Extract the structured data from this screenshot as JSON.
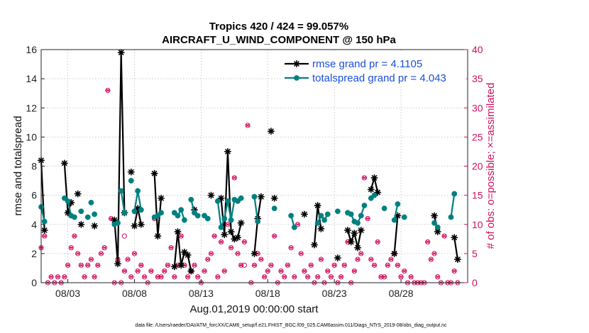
{
  "colors": {
    "rmse": "#000000",
    "spread": "#008080",
    "obs": "#d0105f",
    "legend_text": "#1a4fd8"
  },
  "chart_data": {
    "type": "line",
    "title": "Tropics 420 / 424 = 99.057%",
    "subtitle": "AIRCRAFT_U_WIND_COMPONENT @ 150 hPa",
    "xlabel": "Aug.01,2019 00:00:00 start",
    "ylabel": "rmse and totalspread",
    "ylabel_right": "# of obs: o=possible; ×=assimilated",
    "footer": "data file: /Users/raeder/DAI/ATM_forcXX/CAM6_setup/f.e21.FHIST_BGC.f09_025.CAM6assim.011/Diags_NTrS_2019-08/obs_diag_output.nc",
    "xlim": [
      1,
      33
    ],
    "ylim": [
      0,
      16
    ],
    "ylim_right": [
      0,
      40
    ],
    "x_ticks": [
      3,
      8,
      13,
      18,
      23,
      28
    ],
    "x_tick_labels": [
      "08/03",
      "08/08",
      "08/13",
      "08/18",
      "08/23",
      "08/28"
    ],
    "y_ticks": [
      0,
      2,
      4,
      6,
      8,
      10,
      12,
      14,
      16
    ],
    "y_tick_labels": [
      "0",
      "2",
      "4",
      "6",
      "8",
      "10",
      "12",
      "14",
      "16"
    ],
    "y_ticks_right": [
      0,
      5,
      10,
      15,
      20,
      25,
      30,
      35,
      40
    ],
    "y_tick_labels_right": [
      "0",
      "5",
      "10",
      "15",
      "20",
      "25",
      "30",
      "35",
      "40"
    ],
    "legend": [
      {
        "label": "rmse grand pr = 4.1105",
        "series": "rmse"
      },
      {
        "label": "totalspread grand pr = 4.043",
        "series": "spread"
      }
    ],
    "legend_position": "top-right",
    "series": [
      {
        "name": "rmse",
        "segments": [
          {
            "x": [
              1.0,
              1.25
            ],
            "y": [
              8.4,
              3.6
            ]
          },
          {
            "x": [
              2.75,
              3.0,
              3.25
            ],
            "y": [
              8.2,
              4.8,
              5.5
            ]
          },
          {
            "x": [
              6.5,
              6.75,
              7.0,
              7.25
            ],
            "y": [
              4.3,
              1.3,
              15.8,
              4.8
            ]
          },
          {
            "x": [
              8.0,
              8.25,
              8.5
            ],
            "y": [
              3.9,
              5.1,
              4.0
            ]
          },
          {
            "x": [
              9.5,
              9.75,
              10.0
            ],
            "y": [
              7.5,
              3.2,
              5.8
            ]
          },
          {
            "x": [
              11.0,
              11.25,
              11.5,
              11.75,
              12.0,
              12.25
            ],
            "y": [
              1.1,
              3.5,
              1.2,
              2.1,
              1.9,
              0.8
            ]
          },
          {
            "x": [
              14.5,
              14.75,
              15.0,
              15.25,
              15.5,
              15.75,
              16.0
            ],
            "y": [
              5.8,
              3.3,
              9.0,
              3.5,
              3.0,
              3.1,
              4.1
            ]
          },
          {
            "x": [
              17.0,
              17.25,
              17.5
            ],
            "y": [
              2.0,
              4.4,
              5.9
            ]
          },
          {
            "x": [
              21.5,
              21.75,
              22.0
            ],
            "y": [
              2.6,
              5.3,
              3.7
            ]
          },
          {
            "x": [
              24.0,
              24.25,
              24.5,
              24.75,
              25.0
            ],
            "y": [
              3.6,
              2.8,
              3.4,
              2.4,
              3.6
            ]
          },
          {
            "x": [
              25.75,
              26.0,
              26.25
            ],
            "y": [
              6.4,
              7.2,
              6.2
            ]
          },
          {
            "x": [
              27.5,
              27.75
            ],
            "y": [
              2.0,
              4.6
            ]
          },
          {
            "x": [
              30.5,
              30.75
            ],
            "y": [
              4.6,
              3.5
            ]
          },
          {
            "x": [
              32.0,
              32.25
            ],
            "y": [
              3.1,
              1.6
            ]
          }
        ],
        "isolated": [
          {
            "x": 3.75,
            "y": 6.1
          },
          {
            "x": 4.0,
            "y": 4.0
          },
          {
            "x": 5.0,
            "y": 3.9
          },
          {
            "x": 7.75,
            "y": 7.6
          },
          {
            "x": 12.5,
            "y": 5.0
          },
          {
            "x": 13.75,
            "y": 6.0
          },
          {
            "x": 18.25,
            "y": 10.4
          },
          {
            "x": 18.5,
            "y": 5.8
          },
          {
            "x": 20.75,
            "y": 4.7
          },
          {
            "x": 23.25,
            "y": 1.7
          }
        ]
      },
      {
        "name": "totalspread",
        "segments": [
          {
            "x": [
              1.0,
              1.25
            ],
            "y": [
              5.2,
              4.2
            ]
          },
          {
            "x": [
              2.75,
              3.0,
              3.25
            ],
            "y": [
              5.8,
              5.6,
              4.6
            ]
          },
          {
            "x": [
              6.5,
              6.75
            ],
            "y": [
              4.0,
              4.1
            ]
          },
          {
            "x": [
              7.0,
              7.25
            ],
            "y": [
              6.3,
              4.8
            ]
          },
          {
            "x": [
              8.0,
              8.25,
              8.5
            ],
            "y": [
              4.9,
              6.3,
              5.0
            ]
          },
          {
            "x": [
              9.5,
              9.75,
              10.0
            ],
            "y": [
              4.5,
              4.6,
              4.8
            ]
          },
          {
            "x": [
              11.0,
              11.25,
              11.5,
              11.75
            ],
            "y": [
              4.8,
              4.6,
              5.0,
              4.3
            ]
          },
          {
            "x": [
              12.25,
              12.5,
              12.75
            ],
            "y": [
              5.7,
              4.8,
              4.6
            ]
          },
          {
            "x": [
              14.25,
              14.5,
              14.75,
              15.0,
              15.25,
              15.5,
              15.75,
              16.0
            ],
            "y": [
              5.6,
              3.8,
              4.4,
              5.6,
              4.3,
              5.7,
              5.6,
              5.8
            ]
          },
          {
            "x": [
              17.0,
              17.25
            ],
            "y": [
              5.9,
              4.2
            ]
          },
          {
            "x": [
              19.75,
              20.0
            ],
            "y": [
              4.6,
              3.8
            ]
          },
          {
            "x": [
              21.75,
              22.0,
              22.25,
              22.5
            ],
            "y": [
              4.1,
              4.6,
              4.3,
              4.7
            ]
          },
          {
            "x": [
              24.0,
              24.25,
              24.5,
              24.75,
              25.0,
              25.25
            ],
            "y": [
              4.8,
              4.7,
              4.2,
              4.1,
              4.6,
              5.3
            ]
          },
          {
            "x": [
              25.75,
              26.0
            ],
            "y": [
              5.8,
              6.0
            ]
          },
          {
            "x": [
              27.5,
              27.75
            ],
            "y": [
              4.3,
              5.4
            ]
          },
          {
            "x": [
              30.5,
              30.75
            ],
            "y": [
              4.1,
              3.8
            ]
          },
          {
            "x": [
              31.75,
              32.0
            ],
            "y": [
              4.5,
              6.1
            ]
          }
        ],
        "isolated": [
          {
            "x": 3.5,
            "y": 4.5
          },
          {
            "x": 4.0,
            "y": 4.9
          },
          {
            "x": 4.5,
            "y": 4.5
          },
          {
            "x": 4.75,
            "y": 5.5
          },
          {
            "x": 5.0,
            "y": 4.7
          },
          {
            "x": 7.75,
            "y": 7.0
          },
          {
            "x": 13.25,
            "y": 4.6
          },
          {
            "x": 13.5,
            "y": 4.4
          },
          {
            "x": 18.5,
            "y": 5.1
          },
          {
            "x": 23.25,
            "y": 4.9
          },
          {
            "x": 26.75,
            "y": 5.1
          },
          {
            "x": 28.25,
            "y": 4.5
          }
        ]
      },
      {
        "name": "obs_assimilated",
        "axis": "right",
        "x": [
          1.0,
          1.25,
          1.5,
          1.75,
          2.0,
          2.25,
          2.5,
          2.75,
          3.0,
          3.25,
          3.5,
          3.75,
          4.0,
          4.25,
          4.5,
          4.75,
          5.0,
          5.25,
          5.5,
          5.75,
          6.0,
          6.25,
          6.5,
          6.75,
          7.0,
          7.25,
          7.5,
          7.75,
          8.0,
          8.25,
          8.5,
          8.75,
          9.0,
          9.25,
          9.5,
          9.75,
          10.0,
          10.25,
          10.5,
          10.75,
          11.0,
          11.25,
          11.5,
          11.75,
          12.0,
          12.25,
          12.5,
          12.75,
          13.0,
          13.25,
          13.5,
          13.75,
          14.0,
          14.25,
          14.5,
          14.75,
          15.0,
          15.25,
          15.5,
          15.75,
          16.0,
          16.25,
          16.5,
          16.75,
          17.0,
          17.25,
          17.5,
          17.75,
          18.0,
          18.25,
          18.5,
          18.75,
          19.0,
          19.25,
          19.5,
          19.75,
          20.0,
          20.25,
          20.5,
          20.75,
          21.0,
          21.25,
          21.5,
          21.75,
          22.0,
          22.25,
          22.5,
          22.75,
          23.0,
          23.25,
          23.5,
          23.75,
          24.0,
          24.25,
          24.5,
          24.75,
          25.0,
          25.25,
          25.5,
          25.75,
          26.0,
          26.25,
          26.5,
          26.75,
          27.0,
          27.25,
          27.5,
          27.75,
          28.0,
          28.25,
          28.5,
          28.75,
          29.0,
          29.25,
          29.5,
          29.75,
          30.0,
          30.25,
          30.5,
          30.75,
          31.0,
          31.25,
          31.5,
          31.75,
          32.0,
          32.25
        ],
        "values": [
          6,
          8,
          0,
          1,
          0,
          1,
          0,
          1,
          3,
          6,
          8,
          5,
          3,
          1,
          3,
          4,
          1,
          3,
          5,
          6,
          33,
          11,
          0,
          4,
          0,
          2,
          4,
          1,
          5,
          2,
          3,
          1,
          0,
          2,
          11,
          1,
          1,
          2,
          3,
          6,
          1,
          3,
          8,
          3,
          1,
          2,
          3,
          1,
          0,
          2,
          4,
          5,
          8,
          1,
          7,
          2,
          10,
          6,
          18,
          5,
          3,
          7,
          27,
          0,
          3,
          5,
          4,
          1,
          2,
          3,
          8,
          0,
          2,
          1,
          3,
          6,
          1,
          10,
          5,
          2,
          1,
          3,
          0,
          1,
          4,
          0,
          2,
          1,
          3,
          0,
          1,
          3,
          7,
          0,
          2,
          4,
          5,
          18,
          11,
          4,
          3,
          7,
          1,
          1,
          3,
          4,
          5,
          3,
          1,
          2,
          0,
          1,
          0,
          0,
          0,
          0,
          7,
          4,
          5,
          1,
          0,
          8,
          0,
          0,
          2,
          0
        ]
      },
      {
        "name": "obs_possible",
        "axis": "right",
        "x": [
          7.25,
          16.25
        ],
        "values": [
          8,
          3
        ]
      }
    ]
  }
}
